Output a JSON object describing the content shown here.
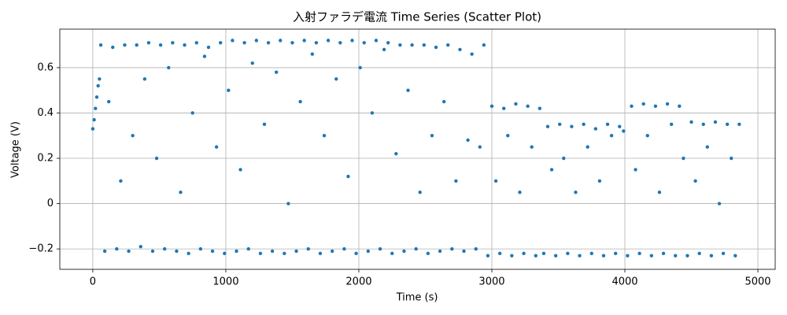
{
  "chart_data": {
    "type": "scatter",
    "title": "入射ファラデ電流 Time Series (Scatter Plot)",
    "x_label": "Time (s)",
    "y_label": "Voltage (V)",
    "x": [
      0,
      10,
      20,
      30,
      40,
      50,
      60,
      90,
      120,
      150,
      180,
      210,
      240,
      270,
      300,
      330,
      360,
      390,
      420,
      450,
      480,
      510,
      540,
      570,
      600,
      630,
      660,
      690,
      720,
      750,
      780,
      810,
      840,
      870,
      900,
      930,
      960,
      990,
      1020,
      1050,
      1080,
      1110,
      1140,
      1170,
      1200,
      1230,
      1260,
      1290,
      1320,
      1350,
      1380,
      1410,
      1440,
      1470,
      1500,
      1530,
      1560,
      1590,
      1620,
      1650,
      1680,
      1710,
      1740,
      1770,
      1800,
      1830,
      1860,
      1890,
      1920,
      1950,
      1980,
      2010,
      2040,
      2070,
      2100,
      2130,
      2160,
      2190,
      2220,
      2250,
      2280,
      2310,
      2340,
      2370,
      2400,
      2430,
      2460,
      2490,
      2520,
      2550,
      2580,
      2610,
      2640,
      2670,
      2700,
      2730,
      2760,
      2790,
      2820,
      2850,
      2880,
      2910,
      2940,
      2970,
      3000,
      3030,
      3060,
      3090,
      3120,
      3150,
      3180,
      3210,
      3240,
      3270,
      3300,
      3330,
      3360,
      3390,
      3420,
      3450,
      3480,
      3510,
      3540,
      3570,
      3600,
      3630,
      3660,
      3690,
      3720,
      3750,
      3780,
      3810,
      3840,
      3870,
      3900,
      3930,
      3960,
      3990,
      4020,
      4050,
      4080,
      4110,
      4140,
      4170,
      4200,
      4230,
      4260,
      4290,
      4320,
      4350,
      4380,
      4410,
      4440,
      4470,
      4500,
      4530,
      4560,
      4590,
      4620,
      4650,
      4680,
      4710,
      4740,
      4770,
      4800,
      4830,
      4860
    ],
    "values": [
      0.33,
      0.37,
      0.42,
      0.47,
      0.52,
      0.55,
      0.7,
      -0.21,
      0.45,
      0.69,
      -0.2,
      0.1,
      0.7,
      -0.21,
      0.3,
      0.7,
      -0.19,
      0.55,
      0.71,
      -0.21,
      0.2,
      0.7,
      -0.2,
      0.6,
      0.71,
      -0.21,
      0.05,
      0.7,
      -0.22,
      0.4,
      0.71,
      -0.2,
      0.65,
      0.69,
      -0.21,
      0.25,
      0.71,
      -0.22,
      0.5,
      0.72,
      -0.21,
      0.15,
      0.71,
      -0.2,
      0.62,
      0.72,
      -0.22,
      0.35,
      0.71,
      -0.21,
      0.58,
      0.72,
      -0.22,
      0.0,
      0.71,
      -0.21,
      0.45,
      0.72,
      -0.2,
      0.66,
      0.71,
      -0.22,
      0.3,
      0.72,
      -0.21,
      0.55,
      0.71,
      -0.2,
      0.12,
      0.72,
      -0.22,
      0.6,
      0.71,
      -0.21,
      0.4,
      0.72,
      -0.2,
      0.68,
      0.71,
      -0.22,
      0.22,
      0.7,
      -0.21,
      0.5,
      0.7,
      -0.2,
      0.05,
      0.7,
      -0.22,
      0.3,
      0.69,
      -0.21,
      0.45,
      0.7,
      -0.2,
      0.1,
      0.68,
      -0.21,
      0.28,
      0.66,
      -0.2,
      0.25,
      0.7,
      -0.23,
      0.43,
      0.1,
      -0.22,
      0.42,
      0.3,
      -0.23,
      0.44,
      0.05,
      -0.22,
      0.43,
      0.25,
      -0.23,
      0.42,
      -0.22,
      0.34,
      0.15,
      -0.23,
      0.35,
      0.2,
      -0.22,
      0.34,
      0.05,
      -0.23,
      0.35,
      0.25,
      -0.22,
      0.33,
      0.1,
      -0.23,
      0.35,
      0.3,
      -0.22,
      0.34,
      0.32,
      -0.23,
      0.43,
      0.15,
      -0.22,
      0.44,
      0.3,
      -0.23,
      0.43,
      0.05,
      -0.22,
      0.44,
      0.35,
      -0.23,
      0.43,
      0.2,
      -0.23,
      0.36,
      0.1,
      -0.22,
      0.35,
      0.25,
      -0.23,
      0.36,
      0.0,
      -0.22,
      0.35,
      0.2,
      -0.23,
      0.35
    ],
    "color": "#1f77b4",
    "xlim": [
      -248,
      5130
    ],
    "xticks": [
      0,
      1000,
      2000,
      3000,
      4000,
      5000
    ],
    "ylim": [
      -0.29,
      0.77
    ],
    "yticks": [
      {
        "value": -0.2,
        "label": "−0.2"
      },
      0.0,
      0.2,
      0.4,
      0.6
    ],
    "grid": true
  }
}
